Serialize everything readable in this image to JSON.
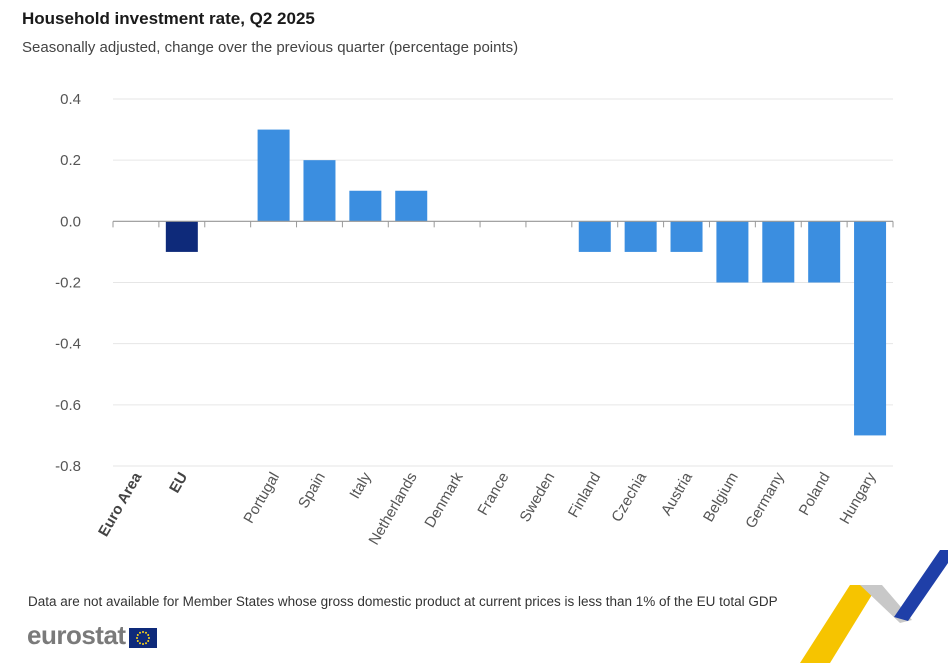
{
  "header": {
    "title": "Household investment rate, Q2 2025",
    "subtitle": "Seasonally adjusted, change over the previous quarter (percentage points)"
  },
  "footnote": "Data are not available for Member States whose gross domestic product at current prices is less than 1% of the EU total GDP",
  "logo": {
    "text": "eurostat",
    "flag_icon": "eu-flag-icon"
  },
  "colors": {
    "eu_bar": "#0e2a7a",
    "country_bar": "#3b8ee0",
    "grid": "#e6e6e6",
    "axis": "#999999"
  },
  "chart_data": {
    "type": "bar",
    "title": "Household investment rate, Q2 2025",
    "subtitle": "Seasonally adjusted, change over the previous quarter (percentage points)",
    "xlabel": "",
    "ylabel": "",
    "ylim": [
      -0.8,
      0.4
    ],
    "yticks": [
      0.4,
      0.2,
      0.0,
      -0.2,
      -0.4,
      -0.6,
      -0.8
    ],
    "ytick_labels": [
      "0.4",
      "0.2",
      "0.0",
      "-0.2",
      "-0.4",
      "-0.6",
      "-0.8"
    ],
    "grid": true,
    "legend": "none",
    "categories": [
      "Euro Area",
      "EU",
      "",
      "Portugal",
      "Spain",
      "Italy",
      "Netherlands",
      "Denmark",
      "France",
      "Sweden",
      "Finland",
      "Czechia",
      "Austria",
      "Belgium",
      "Germany",
      "Poland",
      "Hungary"
    ],
    "bold_categories": [
      "Euro Area",
      "EU"
    ],
    "values": [
      null,
      -0.1,
      null,
      0.3,
      0.2,
      0.1,
      0.1,
      0.0,
      0.0,
      0.0,
      -0.1,
      -0.1,
      -0.1,
      -0.2,
      -0.2,
      -0.2,
      -0.7
    ]
  }
}
